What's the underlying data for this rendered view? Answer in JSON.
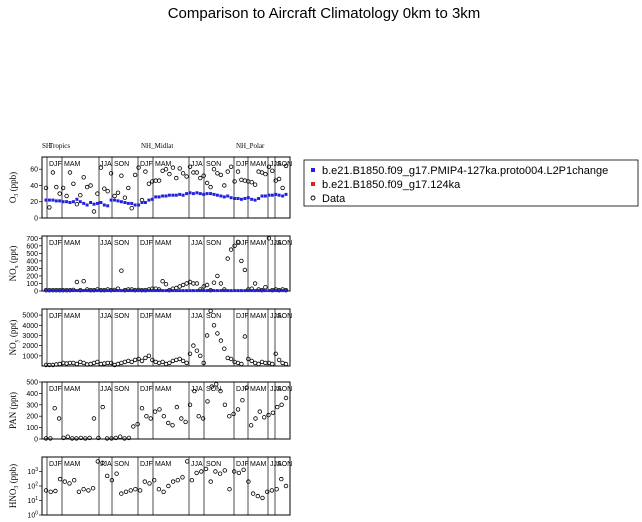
{
  "figure": {
    "title": "Comparison to Aircraft Climatology  0km to 3km"
  },
  "legend": {
    "placement": "right",
    "entries": [
      {
        "label": "b.e21.B1850.f09_g17.PMIP4-127ka.proto004.L2P1change",
        "color": "#2222dd",
        "marker": "square"
      },
      {
        "label": "b.e21.B1850.f09_g17.124ka",
        "color": "#dd2222",
        "marker": "square"
      },
      {
        "label": "Data",
        "color": "#000000",
        "marker": "open-circle"
      }
    ]
  },
  "regions": [
    "SH",
    "Tropics",
    "NH_Midlat",
    "NH_Polar"
  ],
  "seasons": [
    "DJF",
    "MAM",
    "JJA",
    "SON"
  ],
  "chart_data": [
    {
      "type": "scatter",
      "panel": "O3",
      "ylabel": "O3 (ppb)",
      "ylabel_main": "O",
      "ylabel_sub": "3",
      "ylabel_unit": "(ppb)",
      "ylim": [
        0,
        75
      ],
      "yticks": [
        0,
        20,
        40,
        60
      ],
      "series": [
        {
          "name": "Data",
          "values": [
            37,
            13,
            56,
            38,
            30,
            37,
            27,
            56,
            42,
            17,
            28,
            50,
            38,
            40,
            8,
            30,
            62,
            36,
            33,
            55,
            27,
            31,
            52,
            25,
            37,
            12,
            53,
            62,
            22,
            57,
            42,
            45,
            46,
            46,
            58,
            60,
            54,
            62,
            49,
            61,
            55,
            51,
            63,
            56,
            56,
            49,
            52,
            43,
            38,
            60,
            55,
            53,
            40,
            57,
            63,
            45,
            57,
            47,
            46,
            45,
            44,
            41,
            57,
            56,
            54,
            63,
            58,
            46,
            48,
            37,
            64
          ]
        },
        {
          "name": "b.e21.B1850.f09_g17.PMIP4-127ka.proto004.L2P1change",
          "values": [
            22,
            22,
            22,
            21,
            21,
            20,
            20,
            19,
            20,
            23,
            20,
            18,
            16,
            19,
            17,
            18,
            19,
            16,
            15,
            22,
            22,
            21,
            20,
            19,
            18,
            18,
            16,
            16,
            19,
            19,
            22,
            23,
            26,
            26,
            27,
            27,
            28,
            28,
            28,
            29,
            28,
            30,
            31,
            30,
            31,
            30,
            29,
            30,
            30,
            29,
            28,
            27,
            26,
            27,
            25,
            24,
            24,
            23,
            24,
            25,
            23,
            22,
            24,
            27,
            27,
            28,
            28,
            29,
            28,
            27,
            29
          ]
        },
        {
          "name": "b.e21.B1850.f09_g17.124ka",
          "values": []
        }
      ]
    },
    {
      "type": "scatter",
      "panel": "NOx",
      "ylabel": "NOx (ppt)",
      "ylabel_main": "NO",
      "ylabel_sub": "x",
      "ylabel_unit": "(ppt)",
      "ylim": [
        0,
        730
      ],
      "yticks": [
        0,
        100,
        200,
        300,
        400,
        500,
        600,
        700
      ],
      "series": [
        {
          "name": "Data",
          "values": [
            10,
            10,
            10,
            10,
            10,
            10,
            10,
            10,
            15,
            120,
            10,
            130,
            20,
            10,
            10,
            20,
            10,
            10,
            20,
            10,
            15,
            30,
            270,
            10,
            20,
            20,
            10,
            15,
            10,
            10,
            20,
            30,
            30,
            20,
            130,
            90,
            10,
            30,
            40,
            60,
            80,
            100,
            120,
            100,
            100,
            20,
            60,
            80,
            10,
            110,
            200,
            100,
            20,
            430,
            550,
            600,
            650,
            400,
            280,
            20,
            30,
            100,
            20,
            10,
            50,
            700,
            10,
            20,
            10,
            20,
            10
          ]
        },
        {
          "name": "b.e21.B1850.f09_g17.PMIP4-127ka.proto004.L2P1change",
          "values": [
            5,
            5,
            5,
            5,
            5,
            5,
            5,
            5,
            5,
            5,
            5,
            5,
            5,
            5,
            5,
            5,
            5,
            5,
            5,
            5,
            5,
            5,
            5,
            5,
            5,
            5,
            5,
            5,
            5,
            5,
            5,
            5,
            5,
            5,
            5,
            5,
            5,
            5,
            5,
            5,
            5,
            5,
            5,
            5,
            5,
            5,
            5,
            5,
            5,
            5,
            5,
            5,
            5,
            5,
            5,
            5,
            5,
            5,
            5,
            5,
            5,
            5,
            5,
            5,
            5,
            5,
            5,
            5,
            5,
            5,
            5
          ]
        },
        {
          "name": "b.e21.B1850.f09_g17.124ka",
          "values": []
        }
      ]
    },
    {
      "type": "scatter",
      "panel": "NOy",
      "ylabel": "NOy (ppt)",
      "ylabel_main": "NO",
      "ylabel_sub": "y",
      "ylabel_unit": "(ppt)",
      "ylim": [
        0,
        5600
      ],
      "yticks": [
        1000,
        2000,
        3000,
        4000,
        5000
      ],
      "series": [
        {
          "name": "Data",
          "values": [
            100,
            100,
            100,
            150,
            200,
            300,
            250,
            300,
            300,
            200,
            400,
            300,
            150,
            200,
            300,
            400,
            200,
            250,
            300,
            300,
            100,
            200,
            300,
            400,
            500,
            400,
            600,
            700,
            500,
            800,
            1000,
            600,
            400,
            300,
            400,
            200,
            300,
            500,
            600,
            700,
            500,
            300,
            1200,
            2000,
            1500,
            1000,
            300,
            3000,
            5400,
            4000,
            3200,
            2500,
            1700,
            800,
            700,
            400,
            300,
            200,
            2900,
            700,
            500,
            300,
            200,
            400,
            300,
            300,
            200,
            1200,
            600,
            300,
            200
          ]
        },
        {
          "name": "b.e21.B1850.f09_g17.PMIP4-127ka.proto004.L2P1change",
          "values": []
        },
        {
          "name": "b.e21.B1850.f09_g17.124ka",
          "values": []
        }
      ]
    },
    {
      "type": "scatter",
      "panel": "PAN",
      "ylabel": "PAN (ppt)",
      "ylim": [
        0,
        500
      ],
      "yticks": [
        0,
        100,
        200,
        300,
        400,
        500
      ],
      "series": [
        {
          "name": "Data",
          "values": [
            5,
            5,
            270,
            180,
            10,
            20,
            5,
            5,
            10,
            5,
            10,
            180,
            10,
            280,
            5,
            5,
            10,
            20,
            5,
            10,
            110,
            130,
            270,
            200,
            180,
            240,
            260,
            200,
            140,
            120,
            280,
            180,
            150,
            300,
            420,
            200,
            180,
            330,
            460,
            480,
            420,
            300,
            200,
            220,
            260,
            340,
            450,
            120,
            180,
            240,
            190,
            210,
            230,
            280,
            300,
            360
          ]
        },
        {
          "name": "b.e21.B1850.f09_g17.PMIP4-127ka.proto004.L2P1change",
          "values": []
        },
        {
          "name": "b.e21.B1850.f09_g17.124ka",
          "values": []
        }
      ]
    },
    {
      "type": "scatter",
      "panel": "HNO3",
      "ylabel": "HNO3 (ppb)",
      "ylabel_main": "HNO",
      "ylabel_sub": "3",
      "ylabel_unit": "(ppb)",
      "yscale": "log",
      "ylim": [
        1,
        10000
      ],
      "yticks": [
        1,
        10,
        100,
        1000
      ],
      "ytick_labels": [
        "10^0",
        "10^1",
        "10^2",
        "10^3"
      ],
      "series": [
        {
          "name": "Data",
          "values": [
            50,
            40,
            45,
            300,
            200,
            150,
            250,
            40,
            60,
            50,
            70,
            5000,
            4000,
            500,
            250,
            700,
            30,
            40,
            50,
            60,
            50,
            200,
            150,
            250,
            60,
            40,
            100,
            200,
            250,
            400,
            5000,
            250,
            800,
            1000,
            1500,
            200,
            1000,
            700,
            1200,
            60,
            1000,
            800,
            1300,
            200,
            30,
            20,
            15,
            40,
            50,
            60,
            300,
            100
          ]
        },
        {
          "name": "b.e21.B1850.f09_g17.PMIP4-127ka.proto004.L2P1change",
          "values": []
        },
        {
          "name": "b.e21.B1850.f09_g17.124ka",
          "values": []
        }
      ]
    }
  ]
}
